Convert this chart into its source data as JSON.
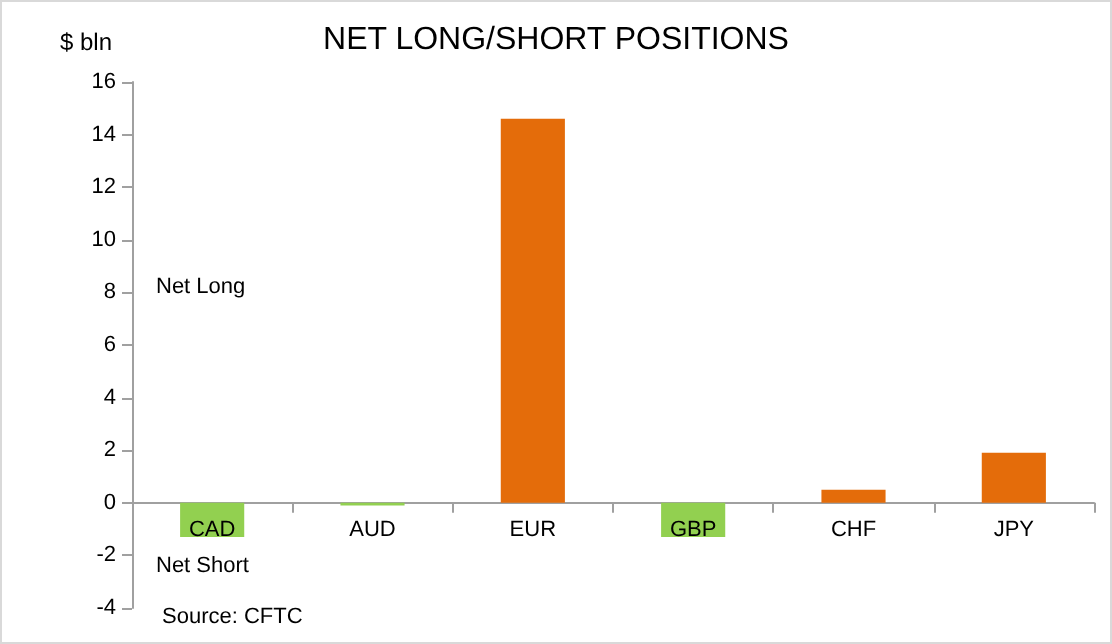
{
  "chart_data": {
    "type": "bar",
    "title": "NET LONG/SHORT POSITIONS",
    "ylabel": "$ bln",
    "categories": [
      "CAD",
      "AUD",
      "EUR",
      "GBP",
      "CHF",
      "JPY"
    ],
    "values": [
      -1.3,
      -0.1,
      14.6,
      -1.3,
      0.5,
      1.9
    ],
    "colors": [
      "#92d050",
      "#92d050",
      "#e46c0a",
      "#92d050",
      "#e46c0a",
      "#e46c0a"
    ],
    "ylim": [
      -4,
      16
    ],
    "yticks": [
      -4,
      -2,
      0,
      2,
      4,
      6,
      8,
      10,
      12,
      14,
      16
    ],
    "annotations": [
      "Net Long",
      "Net Short",
      "Source: CFTC"
    ]
  }
}
